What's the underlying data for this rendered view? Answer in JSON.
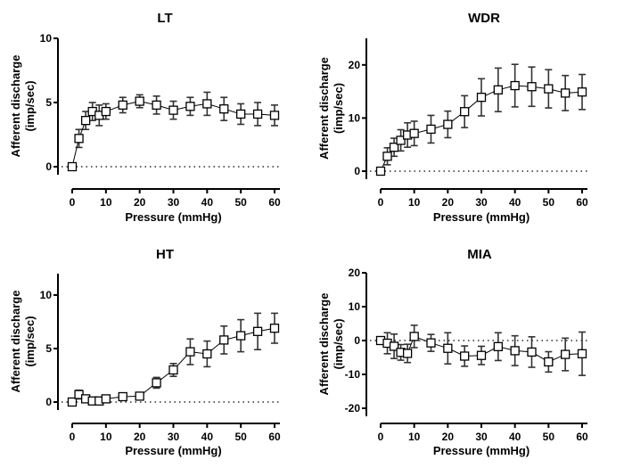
{
  "chart_data": [
    {
      "type": "line",
      "title": "LT",
      "xlabel": "Pressure (mmHg)",
      "ylabel": "Afferent discharge (imp/sec)",
      "ylabel_lines": [
        "Afferent discharge",
        "(imp/sec)"
      ],
      "xlim": [
        0,
        60
      ],
      "ylim": [
        0,
        10
      ],
      "xticks": [
        0,
        10,
        20,
        30,
        40,
        50,
        60
      ],
      "xtick_labels": [
        "0",
        "10",
        "20",
        "30",
        "40",
        "50",
        "60"
      ],
      "yticks": [
        0,
        5,
        10
      ],
      "ytick_labels": [
        "0",
        "5",
        "10"
      ],
      "reference_line": 0,
      "marker": "open-square",
      "error_bars": true,
      "x": [
        0,
        2,
        4,
        6,
        8,
        10,
        15,
        20,
        25,
        30,
        35,
        40,
        45,
        50,
        55,
        60
      ],
      "y": [
        0,
        2.2,
        3.6,
        4.3,
        4.0,
        4.3,
        4.8,
        5.1,
        4.8,
        4.4,
        4.7,
        4.9,
        4.5,
        4.1,
        4.1,
        4.0
      ],
      "err": [
        0,
        0.7,
        0.7,
        0.7,
        0.8,
        0.6,
        0.6,
        0.5,
        0.7,
        0.7,
        0.7,
        0.9,
        0.9,
        0.8,
        0.9,
        0.8
      ]
    },
    {
      "type": "line",
      "title": "WDR",
      "xlabel": "Pressure (mmHg)",
      "ylabel": "Afferent discharge (imp/sec)",
      "ylabel_lines": [
        "Afferent discharge",
        "(imp/sec)"
      ],
      "xlim": [
        0,
        60
      ],
      "ylim": [
        0,
        25
      ],
      "xticks": [
        0,
        10,
        20,
        30,
        40,
        50,
        60
      ],
      "xtick_labels": [
        "0",
        "10",
        "20",
        "30",
        "40",
        "50",
        "60"
      ],
      "yticks": [
        0,
        10,
        20
      ],
      "ytick_labels": [
        "0",
        "10",
        "20"
      ],
      "reference_line": 0,
      "marker": "open-square",
      "error_bars": true,
      "x": [
        0,
        2,
        4,
        6,
        8,
        10,
        15,
        20,
        25,
        30,
        35,
        40,
        45,
        50,
        55,
        60
      ],
      "y": [
        0,
        2.8,
        4.5,
        5.8,
        6.8,
        7.1,
        7.9,
        8.8,
        11.2,
        13.9,
        15.3,
        16.1,
        15.9,
        15.5,
        14.7,
        14.9
      ],
      "err": [
        0,
        1.6,
        1.7,
        2.0,
        2.3,
        2.3,
        2.6,
        2.5,
        3.0,
        3.5,
        4.1,
        4.0,
        3.7,
        3.6,
        3.3,
        3.3
      ]
    },
    {
      "type": "line",
      "title": "HT",
      "xlabel": "Pressure (mmHg)",
      "ylabel": "Afferent discharge (imp/sec)",
      "ylabel_lines": [
        "Afferent discharge",
        "(imp/sec)"
      ],
      "xlim": [
        0,
        60
      ],
      "ylim": [
        0,
        12
      ],
      "xticks": [
        0,
        10,
        20,
        30,
        40,
        50,
        60
      ],
      "xtick_labels": [
        "0",
        "10",
        "20",
        "30",
        "40",
        "50",
        "60"
      ],
      "yticks": [
        0,
        5,
        10
      ],
      "ytick_labels": [
        "0",
        "5",
        "10"
      ],
      "reference_line": 0,
      "marker": "open-square",
      "error_bars": true,
      "x": [
        0,
        2,
        4,
        6,
        8,
        10,
        15,
        20,
        25,
        30,
        35,
        40,
        45,
        50,
        55,
        60
      ],
      "y": [
        0,
        0.7,
        0.3,
        0.1,
        0.1,
        0.3,
        0.5,
        0.55,
        1.8,
        3.0,
        4.7,
        4.5,
        5.8,
        6.2,
        6.6,
        6.9
      ],
      "err": [
        0,
        0.4,
        0.15,
        0.3,
        0.1,
        0.1,
        0.1,
        0.1,
        0.5,
        0.6,
        1.2,
        1.2,
        1.3,
        1.5,
        1.7,
        1.4
      ]
    },
    {
      "type": "line",
      "title": "MIA",
      "xlabel": "Pressure (mmHg)",
      "ylabel": "Afferent discharge (imp/sec)",
      "ylabel_lines": [
        "Afferent discharge",
        "(imp/sec)"
      ],
      "xlim": [
        0,
        60
      ],
      "ylim": [
        -20,
        20
      ],
      "xticks": [
        0,
        10,
        20,
        30,
        40,
        50,
        60
      ],
      "xtick_labels": [
        "0",
        "10",
        "20",
        "30",
        "40",
        "50",
        "60"
      ],
      "yticks": [
        -20,
        -10,
        0,
        10,
        20
      ],
      "ytick_labels": [
        "-20",
        "-10",
        "0",
        "10",
        "20"
      ],
      "reference_line": 0,
      "marker": "open-square",
      "error_bars": true,
      "x": [
        0,
        2,
        4,
        6,
        8,
        10,
        15,
        20,
        25,
        30,
        35,
        40,
        45,
        50,
        55,
        60
      ],
      "y": [
        0,
        -0.8,
        -1.7,
        -3.5,
        -3.8,
        1.2,
        -0.7,
        -2.3,
        -4.6,
        -4.4,
        -1.8,
        -3.0,
        -3.4,
        -6.3,
        -4.1,
        -3.9
      ],
      "err": [
        0,
        3.1,
        3.6,
        2.3,
        2.7,
        3.3,
        2.5,
        4.6,
        3.0,
        2.7,
        4.1,
        4.4,
        4.5,
        3.0,
        4.8,
        6.4
      ]
    }
  ]
}
